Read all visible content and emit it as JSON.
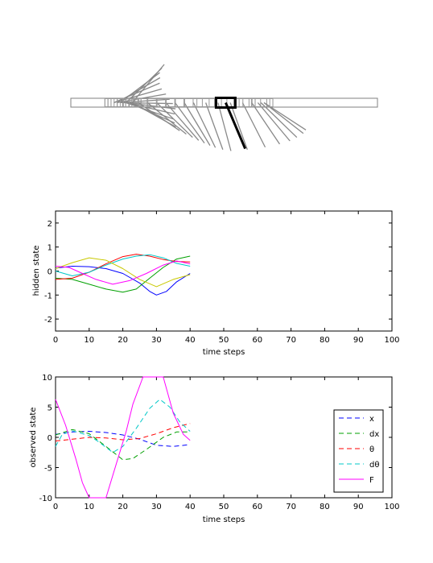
{
  "chart_data": [
    {
      "type": "diagram",
      "panel": "cart-pole animation",
      "track_x_range": [
        -5,
        5
      ],
      "pole_current": {
        "cart_x": 0.05,
        "theta_deg": 157
      },
      "pole_history": [
        {
          "cart_x": -3.0,
          "theta_deg": 40
        },
        {
          "cart_x": -3.2,
          "theta_deg": 46
        },
        {
          "cart_x": -3.4,
          "theta_deg": 53
        },
        {
          "cart_x": -3.5,
          "theta_deg": 60
        },
        {
          "cart_x": -3.6,
          "theta_deg": 67
        },
        {
          "cart_x": -3.6,
          "theta_deg": 74
        },
        {
          "cart_x": -3.5,
          "theta_deg": 80
        },
        {
          "cart_x": -3.4,
          "theta_deg": 86
        },
        {
          "cart_x": -3.3,
          "theta_deg": 91
        },
        {
          "cart_x": -3.2,
          "theta_deg": 97
        },
        {
          "cart_x": -3.2,
          "theta_deg": 103
        },
        {
          "cart_x": -3.2,
          "theta_deg": 109
        },
        {
          "cart_x": -3.1,
          "theta_deg": 114
        },
        {
          "cart_x": -3.0,
          "theta_deg": 119
        },
        {
          "cart_x": -2.8,
          "theta_deg": 124
        },
        {
          "cart_x": -2.5,
          "theta_deg": 129
        },
        {
          "cart_x": -2.2,
          "theta_deg": 134
        },
        {
          "cart_x": -1.9,
          "theta_deg": 139
        },
        {
          "cart_x": -1.6,
          "theta_deg": 144
        },
        {
          "cart_x": -1.3,
          "theta_deg": 149
        },
        {
          "cart_x": -1.0,
          "theta_deg": 154
        },
        {
          "cart_x": -0.6,
          "theta_deg": 160
        },
        {
          "cart_x": -0.2,
          "theta_deg": 165
        },
        {
          "cart_x": 0.2,
          "theta_deg": 160
        },
        {
          "cart_x": 0.6,
          "theta_deg": 153
        },
        {
          "cart_x": 0.9,
          "theta_deg": 146
        },
        {
          "cart_x": 1.1,
          "theta_deg": 140
        },
        {
          "cart_x": 1.2,
          "theta_deg": 134
        },
        {
          "cart_x": 1.3,
          "theta_deg": 128
        },
        {
          "cart_x": 1.3,
          "theta_deg": 123
        }
      ]
    },
    {
      "type": "line",
      "panel": "hidden state",
      "xlabel": "time steps",
      "ylabel": "hidden state",
      "xlim": [
        0,
        100
      ],
      "ylim": [
        -2.5,
        2.5
      ],
      "xticks": [
        0,
        10,
        20,
        30,
        40,
        50,
        60,
        70,
        80,
        90,
        100
      ],
      "yticks": [
        -2,
        -1,
        0,
        1,
        2
      ],
      "grid": false,
      "series": [
        {
          "color": "#0000ff",
          "points": [
            [
              0,
              0.12
            ],
            [
              5,
              0.2
            ],
            [
              10,
              0.18
            ],
            [
              15,
              0.1
            ],
            [
              20,
              -0.1
            ],
            [
              25,
              -0.5
            ],
            [
              28,
              -0.85
            ],
            [
              30,
              -1.0
            ],
            [
              33,
              -0.85
            ],
            [
              36,
              -0.45
            ],
            [
              40,
              -0.1
            ]
          ]
        },
        {
          "color": "#00a000",
          "points": [
            [
              0,
              -0.3
            ],
            [
              5,
              -0.35
            ],
            [
              10,
              -0.55
            ],
            [
              15,
              -0.75
            ],
            [
              20,
              -0.88
            ],
            [
              24,
              -0.75
            ],
            [
              28,
              -0.3
            ],
            [
              32,
              0.15
            ],
            [
              36,
              0.5
            ],
            [
              40,
              0.62
            ]
          ]
        },
        {
          "color": "#ff0000",
          "points": [
            [
              0,
              -0.35
            ],
            [
              5,
              -0.3
            ],
            [
              10,
              -0.05
            ],
            [
              15,
              0.3
            ],
            [
              20,
              0.6
            ],
            [
              24,
              0.7
            ],
            [
              28,
              0.62
            ],
            [
              32,
              0.48
            ],
            [
              36,
              0.4
            ],
            [
              40,
              0.38
            ]
          ]
        },
        {
          "color": "#00c8c8",
          "points": [
            [
              0,
              0.0
            ],
            [
              5,
              -0.2
            ],
            [
              10,
              -0.05
            ],
            [
              15,
              0.25
            ],
            [
              20,
              0.5
            ],
            [
              24,
              0.62
            ],
            [
              28,
              0.68
            ],
            [
              32,
              0.55
            ],
            [
              36,
              0.32
            ],
            [
              40,
              0.2
            ]
          ]
        },
        {
          "color": "#c8c800",
          "points": [
            [
              0,
              0.1
            ],
            [
              5,
              0.35
            ],
            [
              10,
              0.55
            ],
            [
              15,
              0.45
            ],
            [
              20,
              0.1
            ],
            [
              25,
              -0.35
            ],
            [
              30,
              -0.65
            ],
            [
              35,
              -0.35
            ],
            [
              40,
              -0.15
            ]
          ]
        },
        {
          "color": "#ff00ff",
          "points": [
            [
              0,
              0.2
            ],
            [
              4,
              0.15
            ],
            [
              8,
              -0.1
            ],
            [
              12,
              -0.35
            ],
            [
              17,
              -0.55
            ],
            [
              22,
              -0.4
            ],
            [
              27,
              -0.1
            ],
            [
              32,
              0.25
            ],
            [
              36,
              0.42
            ],
            [
              40,
              0.3
            ]
          ]
        }
      ]
    },
    {
      "type": "line",
      "panel": "observed state",
      "xlabel": "time steps",
      "ylabel": "observed state",
      "xlim": [
        0,
        100
      ],
      "ylim": [
        -10,
        10
      ],
      "xticks": [
        0,
        10,
        20,
        30,
        40,
        50,
        60,
        70,
        80,
        90,
        100
      ],
      "yticks": [
        -10,
        -5,
        0,
        5,
        10
      ],
      "grid": false,
      "legend": {
        "placement": "right",
        "entries": [
          "x",
          "dx",
          "θ",
          "dθ",
          "F"
        ]
      },
      "series": [
        {
          "name": "x",
          "color": "#0000ff",
          "dash": "6,4",
          "points": [
            [
              0,
              0.5
            ],
            [
              5,
              0.9
            ],
            [
              10,
              1.0
            ],
            [
              15,
              0.8
            ],
            [
              20,
              0.4
            ],
            [
              25,
              -0.3
            ],
            [
              30,
              -1.3
            ],
            [
              35,
              -1.5
            ],
            [
              40,
              -1.2
            ]
          ]
        },
        {
          "name": "dx",
          "color": "#00a000",
          "dash": "6,4",
          "points": [
            [
              0,
              0.4
            ],
            [
              5,
              1.3
            ],
            [
              10,
              0.6
            ],
            [
              15,
              -1.5
            ],
            [
              20,
              -3.7
            ],
            [
              23,
              -3.5
            ],
            [
              27,
              -2.0
            ],
            [
              32,
              0.0
            ],
            [
              36,
              0.9
            ],
            [
              40,
              0.9
            ]
          ]
        },
        {
          "name": "θ",
          "color": "#ff0000",
          "dash": "6,4",
          "points": [
            [
              0,
              -0.6
            ],
            [
              5,
              -0.3
            ],
            [
              10,
              0.0
            ],
            [
              15,
              -0.1
            ],
            [
              20,
              -0.4
            ],
            [
              25,
              -0.2
            ],
            [
              30,
              0.6
            ],
            [
              35,
              1.6
            ],
            [
              40,
              2.3
            ]
          ]
        },
        {
          "name": "dθ",
          "color": "#00c8c8",
          "dash": "6,4",
          "points": [
            [
              0,
              -1.5
            ],
            [
              2,
              0.5
            ],
            [
              5,
              1.1
            ],
            [
              10,
              0.3
            ],
            [
              13,
              -0.8
            ],
            [
              17,
              -2.5
            ],
            [
              20,
              -1.5
            ],
            [
              24,
              1.5
            ],
            [
              28,
              4.8
            ],
            [
              31,
              6.3
            ],
            [
              34,
              5.0
            ],
            [
              37,
              2.5
            ],
            [
              40,
              1.0
            ]
          ]
        },
        {
          "name": "F",
          "color": "#ff00ff",
          "dash": "",
          "points": [
            [
              0,
              6.3
            ],
            [
              3,
              2.0
            ],
            [
              6,
              -3.5
            ],
            [
              8,
              -7.5
            ],
            [
              10,
              -10
            ],
            [
              15,
              -10
            ],
            [
              18,
              -4.5
            ],
            [
              21,
              1.0
            ],
            [
              23,
              5.5
            ],
            [
              26,
              10
            ],
            [
              32,
              10
            ],
            [
              35,
              4.0
            ],
            [
              38,
              0.5
            ],
            [
              40,
              -0.5
            ]
          ]
        }
      ]
    }
  ]
}
